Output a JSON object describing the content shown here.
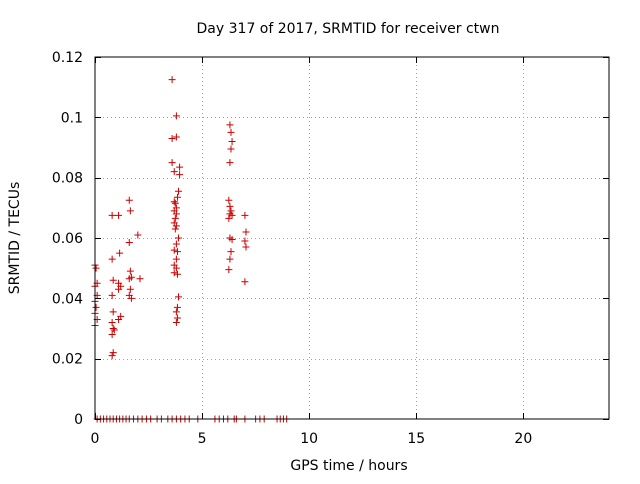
{
  "chart_data": {
    "type": "scatter",
    "title": "Day 317 of 2017, SRMTID for receiver ctwn",
    "xlabel": "GPS time / hours",
    "ylabel": "SRMTID / TECUs",
    "xlim": [
      0,
      24
    ],
    "ylim": [
      0,
      0.12
    ],
    "x_ticks": [
      0,
      5,
      10,
      15,
      20
    ],
    "x_tick_labels": [
      "0",
      "5",
      "10",
      "15",
      "20"
    ],
    "y_ticks": [
      0,
      0.02,
      0.04,
      0.06,
      0.08,
      0.1,
      0.12
    ],
    "y_tick_labels": [
      "0",
      "0.02",
      "0.04",
      "0.06",
      "0.08",
      "0.1",
      "0.12"
    ],
    "grid": true,
    "colors": {
      "points": "#cc0000",
      "grid": "#a0a0a0",
      "axis": "#000000"
    },
    "series": [
      {
        "name": "SRMTID",
        "marker": "plus",
        "points": [
          [
            0.0,
            0.051
          ],
          [
            0.05,
            0.05
          ],
          [
            0.0,
            0.044
          ],
          [
            0.1,
            0.041
          ],
          [
            0.0,
            0.039
          ],
          [
            0.05,
            0.037
          ],
          [
            0.0,
            0.035
          ],
          [
            0.1,
            0.033
          ],
          [
            0.0,
            0.031
          ],
          [
            0.1,
            0.045
          ],
          [
            0.8,
            0.0675
          ],
          [
            0.8,
            0.053
          ],
          [
            0.85,
            0.046
          ],
          [
            0.8,
            0.041
          ],
          [
            0.85,
            0.0355
          ],
          [
            0.8,
            0.032
          ],
          [
            0.85,
            0.03
          ],
          [
            0.9,
            0.0295
          ],
          [
            0.8,
            0.028
          ],
          [
            0.85,
            0.022
          ],
          [
            0.8,
            0.021
          ],
          [
            1.1,
            0.0675
          ],
          [
            1.15,
            0.055
          ],
          [
            1.1,
            0.045
          ],
          [
            1.2,
            0.044
          ],
          [
            1.1,
            0.043
          ],
          [
            1.2,
            0.034
          ],
          [
            1.1,
            0.033
          ],
          [
            1.6,
            0.0725
          ],
          [
            1.65,
            0.069
          ],
          [
            1.6,
            0.0585
          ],
          [
            1.65,
            0.049
          ],
          [
            1.7,
            0.047
          ],
          [
            1.6,
            0.0465
          ],
          [
            1.65,
            0.043
          ],
          [
            1.6,
            0.041
          ],
          [
            1.7,
            0.04
          ],
          [
            2.0,
            0.061
          ],
          [
            2.1,
            0.0465
          ],
          [
            3.6,
            0.1125
          ],
          [
            3.8,
            0.1005
          ],
          [
            3.6,
            0.093
          ],
          [
            3.8,
            0.0935
          ],
          [
            3.6,
            0.085
          ],
          [
            3.95,
            0.0835
          ],
          [
            3.7,
            0.082
          ],
          [
            3.95,
            0.081
          ],
          [
            3.9,
            0.0755
          ],
          [
            3.85,
            0.0735
          ],
          [
            3.7,
            0.072
          ],
          [
            3.75,
            0.0715
          ],
          [
            3.8,
            0.07
          ],
          [
            3.7,
            0.069
          ],
          [
            3.8,
            0.068
          ],
          [
            3.75,
            0.0665
          ],
          [
            3.7,
            0.065
          ],
          [
            3.8,
            0.064
          ],
          [
            3.75,
            0.063
          ],
          [
            3.9,
            0.06
          ],
          [
            3.8,
            0.058
          ],
          [
            3.7,
            0.056
          ],
          [
            3.85,
            0.0555
          ],
          [
            3.8,
            0.053
          ],
          [
            3.7,
            0.051
          ],
          [
            3.8,
            0.05
          ],
          [
            3.7,
            0.0485
          ],
          [
            3.85,
            0.048
          ],
          [
            3.9,
            0.0405
          ],
          [
            3.85,
            0.037
          ],
          [
            3.8,
            0.0355
          ],
          [
            3.85,
            0.0335
          ],
          [
            3.8,
            0.032
          ],
          [
            6.3,
            0.0975
          ],
          [
            6.35,
            0.095
          ],
          [
            6.4,
            0.092
          ],
          [
            6.35,
            0.0895
          ],
          [
            6.3,
            0.085
          ],
          [
            6.25,
            0.0725
          ],
          [
            6.3,
            0.0705
          ],
          [
            6.35,
            0.069
          ],
          [
            6.3,
            0.068
          ],
          [
            6.4,
            0.0675
          ],
          [
            6.25,
            0.0665
          ],
          [
            6.3,
            0.06
          ],
          [
            6.4,
            0.0595
          ],
          [
            6.35,
            0.0555
          ],
          [
            6.3,
            0.053
          ],
          [
            6.25,
            0.0495
          ],
          [
            7.0,
            0.0675
          ],
          [
            7.05,
            0.062
          ],
          [
            7.0,
            0.059
          ],
          [
            7.05,
            0.057
          ],
          [
            7.0,
            0.0455
          ],
          [
            0.1,
            0.0
          ],
          [
            0.25,
            0.0
          ],
          [
            0.4,
            0.0
          ],
          [
            0.55,
            0.0
          ],
          [
            0.7,
            0.0
          ],
          [
            0.85,
            0.0
          ],
          [
            1.0,
            0.0
          ],
          [
            1.15,
            0.0
          ],
          [
            1.3,
            0.0
          ],
          [
            1.45,
            0.0
          ],
          [
            1.6,
            0.0
          ],
          [
            1.8,
            0.0
          ],
          [
            2.0,
            0.0
          ],
          [
            2.2,
            0.0
          ],
          [
            2.4,
            0.0
          ],
          [
            2.6,
            0.0
          ],
          [
            2.9,
            0.0
          ],
          [
            3.1,
            0.0
          ],
          [
            3.4,
            0.0
          ],
          [
            3.6,
            0.0
          ],
          [
            3.8,
            0.0
          ],
          [
            4.0,
            0.0
          ],
          [
            4.2,
            0.0
          ],
          [
            4.4,
            0.0
          ],
          [
            4.8,
            0.0
          ],
          [
            5.6,
            0.0
          ],
          [
            5.8,
            0.0
          ],
          [
            6.0,
            0.0
          ],
          [
            6.2,
            0.0
          ],
          [
            6.5,
            0.0
          ],
          [
            6.6,
            0.0
          ],
          [
            7.0,
            0.0
          ],
          [
            7.5,
            0.0
          ],
          [
            7.7,
            0.0
          ],
          [
            7.9,
            0.0
          ],
          [
            8.5,
            0.0
          ],
          [
            8.65,
            0.0
          ],
          [
            8.8,
            0.0
          ],
          [
            8.95,
            0.0
          ]
        ]
      }
    ]
  }
}
